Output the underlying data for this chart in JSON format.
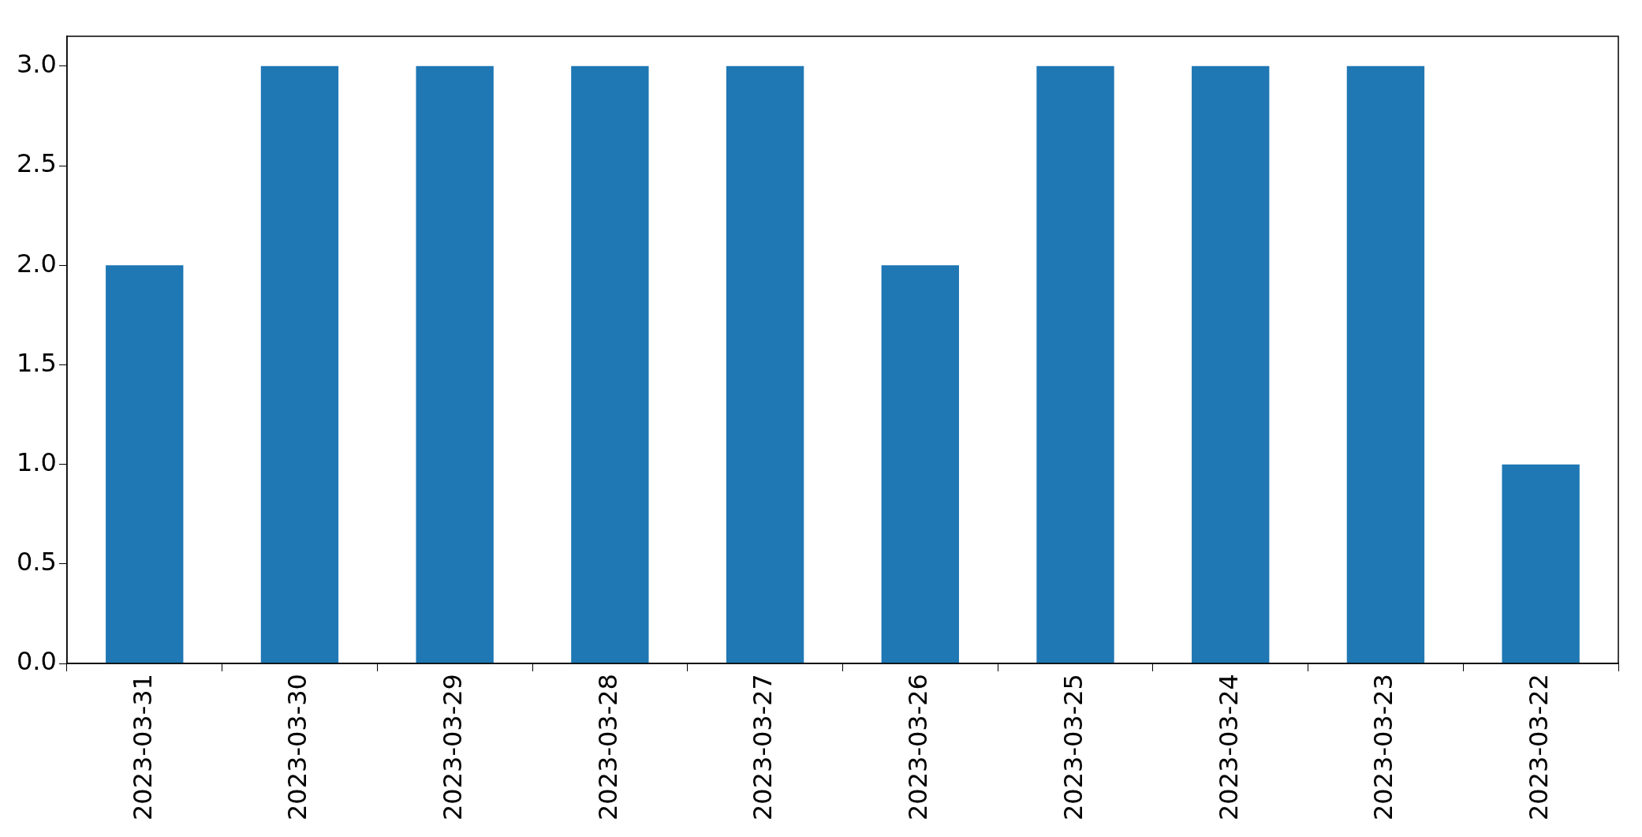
{
  "chart_data": {
    "type": "bar",
    "categories": [
      "2023-03-31",
      "2023-03-30",
      "2023-03-29",
      "2023-03-28",
      "2023-03-27",
      "2023-03-26",
      "2023-03-25",
      "2023-03-24",
      "2023-03-23",
      "2023-03-22"
    ],
    "values": [
      2,
      3,
      3,
      3,
      3,
      2,
      3,
      3,
      3,
      1
    ],
    "color": "#1f77b4",
    "ylim": [
      0,
      3.15
    ],
    "yticks": [
      {
        "value": 0,
        "label": "0.0"
      },
      {
        "value": 0.5,
        "label": "0.5"
      },
      {
        "value": 1,
        "label": "1.0"
      },
      {
        "value": 1.5,
        "label": "1.5"
      },
      {
        "value": 2,
        "label": "2.0"
      },
      {
        "value": 2.5,
        "label": "2.5"
      },
      {
        "value": 3,
        "label": "3.0"
      }
    ],
    "grid": false,
    "legend": false
  }
}
